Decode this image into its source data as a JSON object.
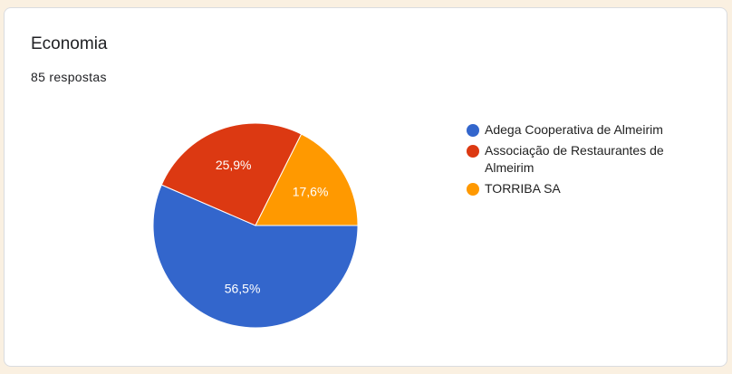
{
  "title": "Economia",
  "subtitle": "85 respostas",
  "chart_data": {
    "type": "pie",
    "categories": [
      "Adega Cooperativa de Almeirim",
      "Associação de Restaurantes de Almeirim",
      "TORRIBA SA"
    ],
    "values": [
      56.5,
      25.9,
      17.6
    ],
    "labels": [
      "56,5%",
      "25,9%",
      "17,6%"
    ],
    "colors": [
      "#3366cc",
      "#dc3912",
      "#ff9900"
    ],
    "legend_position": "right"
  }
}
